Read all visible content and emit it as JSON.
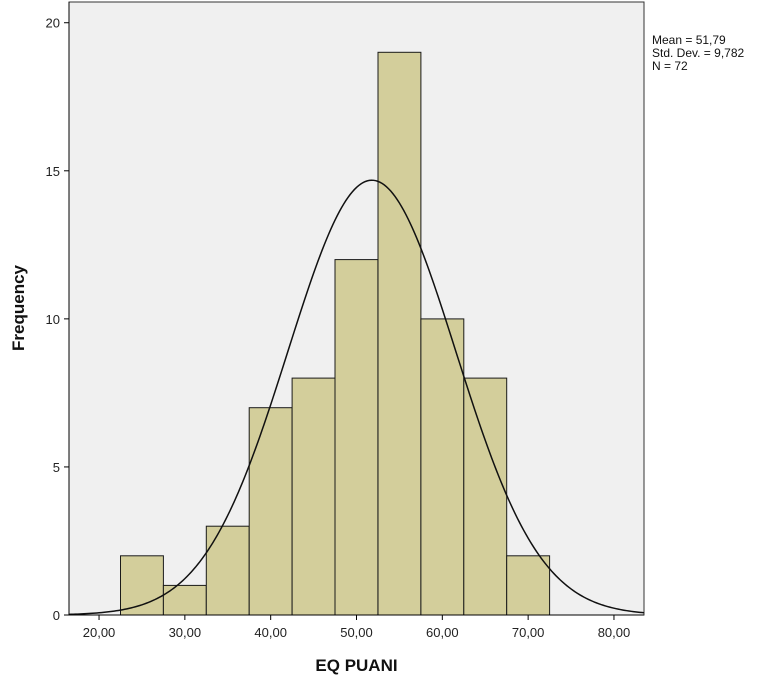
{
  "chart_data": {
    "type": "bar",
    "subtype": "histogram",
    "xlabel": "EQ PUANI",
    "ylabel": "Frequency",
    "xlim": [
      16.5,
      83.5
    ],
    "ylim": [
      0,
      20.7
    ],
    "x_ticks": [
      {
        "value": 20,
        "label": "20,00"
      },
      {
        "value": 30,
        "label": "30,00"
      },
      {
        "value": 40,
        "label": "40,00"
      },
      {
        "value": 50,
        "label": "50,00"
      },
      {
        "value": 60,
        "label": "60,00"
      },
      {
        "value": 70,
        "label": "70,00"
      },
      {
        "value": 80,
        "label": "80,00"
      }
    ],
    "y_ticks": [
      {
        "value": 0,
        "label": "0"
      },
      {
        "value": 5,
        "label": "5"
      },
      {
        "value": 10,
        "label": "10"
      },
      {
        "value": 15,
        "label": "15"
      },
      {
        "value": 20,
        "label": "20"
      }
    ],
    "bins": [
      {
        "from": 22.5,
        "to": 27.5,
        "count": 2
      },
      {
        "from": 27.5,
        "to": 32.5,
        "count": 1
      },
      {
        "from": 32.5,
        "to": 37.5,
        "count": 3
      },
      {
        "from": 37.5,
        "to": 42.5,
        "count": 7
      },
      {
        "from": 42.5,
        "to": 47.5,
        "count": 8
      },
      {
        "from": 47.5,
        "to": 52.5,
        "count": 12
      },
      {
        "from": 52.5,
        "to": 57.5,
        "count": 19
      },
      {
        "from": 57.5,
        "to": 62.5,
        "count": 10
      },
      {
        "from": 62.5,
        "to": 67.5,
        "count": 8
      },
      {
        "from": 67.5,
        "to": 72.5,
        "count": 2
      }
    ],
    "normal_curve": {
      "mean": 51.79,
      "std": 9.782,
      "n": 72,
      "bin_width": 5
    },
    "stats_lines": [
      "Mean = 51,79",
      "Std. Dev. = 9,782",
      "N = 72"
    ],
    "colors": {
      "bar_fill": "#d3ce9b",
      "bar_stroke": "#1a1a1a",
      "plot_bg": "#f0f0f0",
      "curve": "#111111"
    },
    "grid": false,
    "legend_position": "top-right"
  }
}
